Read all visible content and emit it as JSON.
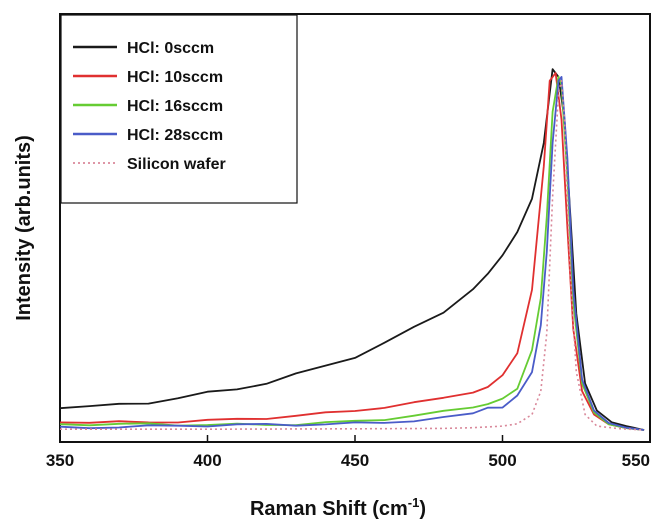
{
  "chart_data": {
    "type": "line",
    "xlabel": "Raman Shift (cm",
    "xlabel_sup": "-1",
    "xlabel_close": ")",
    "ylabel": "Intensity (arb.units)",
    "xlim": [
      350,
      550
    ],
    "ylim": [
      0,
      1.0
    ],
    "xticks": [
      350,
      400,
      450,
      500,
      550
    ],
    "ytick_labels_shown": false,
    "legend_position": "top-left",
    "series": [
      {
        "name": "HCl: 0sccm",
        "color": "#1a1a1a",
        "style": "solid",
        "x": [
          350,
          360,
          370,
          380,
          390,
          400,
          410,
          420,
          430,
          440,
          450,
          460,
          470,
          480,
          490,
          495,
          500,
          505,
          510,
          514,
          517,
          519,
          521,
          523,
          525,
          528,
          532,
          537,
          542,
          548
        ],
        "y": [
          0.065,
          0.062,
          0.066,
          0.072,
          0.08,
          0.09,
          0.102,
          0.118,
          0.138,
          0.162,
          0.19,
          0.225,
          0.265,
          0.31,
          0.37,
          0.4,
          0.45,
          0.51,
          0.6,
          0.74,
          0.93,
          0.91,
          0.8,
          0.55,
          0.3,
          0.12,
          0.05,
          0.02,
          0.01,
          0.0
        ]
      },
      {
        "name": "HCl: 10sccm",
        "color": "#e03030",
        "style": "solid",
        "x": [
          350,
          360,
          370,
          380,
          390,
          400,
          410,
          420,
          430,
          440,
          450,
          460,
          470,
          480,
          490,
          495,
          500,
          505,
          510,
          514,
          516,
          518,
          520,
          522,
          524,
          527,
          531,
          536,
          542,
          548
        ],
        "y": [
          0.022,
          0.021,
          0.022,
          0.023,
          0.025,
          0.027,
          0.029,
          0.032,
          0.036,
          0.041,
          0.048,
          0.056,
          0.066,
          0.08,
          0.098,
          0.11,
          0.14,
          0.2,
          0.36,
          0.68,
          0.9,
          0.92,
          0.8,
          0.52,
          0.26,
          0.1,
          0.04,
          0.015,
          0.005,
          0.0
        ]
      },
      {
        "name": "HCl: 16sccm",
        "color": "#66cc33",
        "style": "solid",
        "x": [
          350,
          360,
          370,
          380,
          390,
          400,
          410,
          420,
          430,
          440,
          450,
          460,
          470,
          480,
          490,
          495,
          500,
          505,
          510,
          513,
          515,
          517,
          519,
          520,
          522,
          524,
          527,
          531,
          536,
          542,
          548
        ],
        "y": [
          0.012,
          0.012,
          0.012,
          0.013,
          0.013,
          0.014,
          0.015,
          0.016,
          0.018,
          0.021,
          0.025,
          0.03,
          0.037,
          0.046,
          0.058,
          0.066,
          0.08,
          0.11,
          0.2,
          0.34,
          0.55,
          0.82,
          0.91,
          0.89,
          0.65,
          0.33,
          0.12,
          0.045,
          0.015,
          0.005,
          0.0
        ]
      },
      {
        "name": "HCl: 28sccm",
        "color": "#4a5cc8",
        "style": "solid",
        "x": [
          350,
          360,
          370,
          380,
          390,
          400,
          410,
          420,
          430,
          440,
          450,
          460,
          470,
          480,
          490,
          495,
          500,
          505,
          510,
          513,
          515,
          517,
          519,
          520,
          522,
          524,
          527,
          531,
          536,
          542,
          548
        ],
        "y": [
          0.008,
          0.008,
          0.008,
          0.008,
          0.009,
          0.009,
          0.01,
          0.011,
          0.012,
          0.014,
          0.017,
          0.021,
          0.027,
          0.034,
          0.045,
          0.053,
          0.063,
          0.085,
          0.15,
          0.27,
          0.46,
          0.74,
          0.9,
          0.91,
          0.7,
          0.36,
          0.13,
          0.05,
          0.018,
          0.006,
          0.0
        ]
      },
      {
        "name": "Silicon wafer",
        "color": "#d9889a",
        "style": "dotted",
        "x": [
          350,
          400,
          450,
          480,
          490,
          500,
          505,
          510,
          513,
          515,
          517,
          519,
          520,
          521,
          523,
          525,
          528,
          532,
          540,
          548
        ],
        "y": [
          0.002,
          0.002,
          0.003,
          0.004,
          0.006,
          0.01,
          0.016,
          0.04,
          0.1,
          0.25,
          0.6,
          0.87,
          0.9,
          0.8,
          0.4,
          0.15,
          0.04,
          0.01,
          0.003,
          0.0
        ]
      }
    ]
  }
}
